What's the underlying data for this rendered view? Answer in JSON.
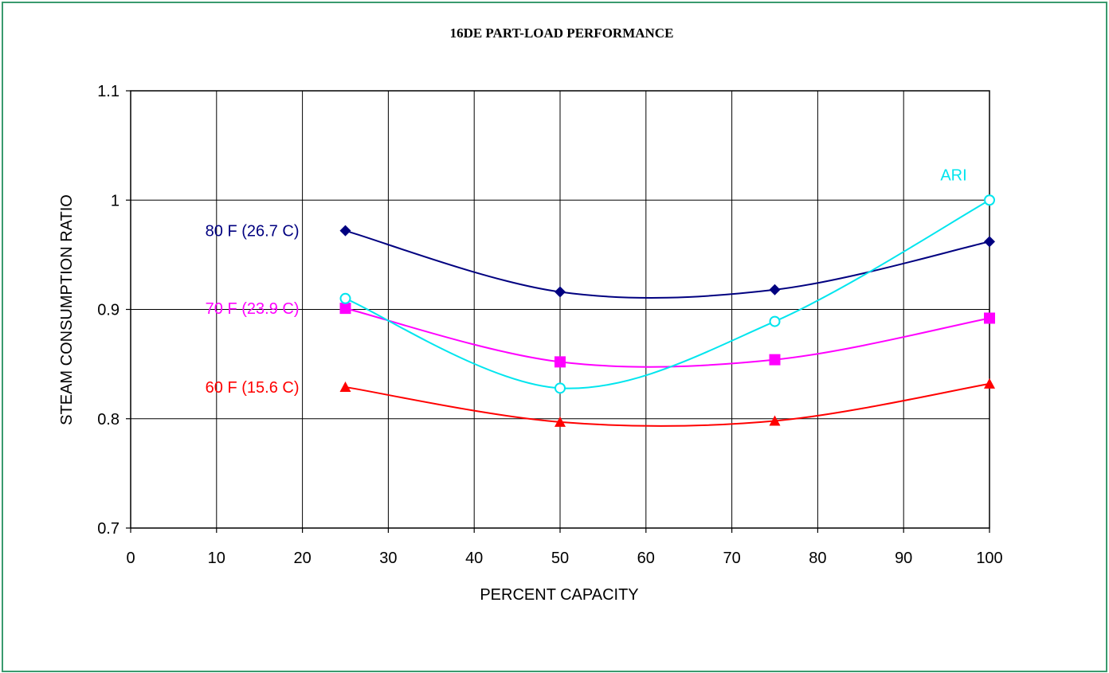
{
  "chart_data": {
    "type": "line",
    "title": "16DE PART-LOAD PERFORMANCE",
    "xlabel": "PERCENT CAPACITY",
    "ylabel": "STEAM CONSUMPTION RATIO",
    "xlim": [
      0,
      100
    ],
    "ylim": [
      0.7,
      1.1
    ],
    "x_ticks": [
      "0",
      "10",
      "20",
      "30",
      "40",
      "50",
      "60",
      "70",
      "80",
      "90",
      "100"
    ],
    "y_ticks": [
      "0.7",
      "0.8",
      "0.9",
      "1",
      "1.1"
    ],
    "grid": true,
    "x": [
      25,
      50,
      75,
      100
    ],
    "series": [
      {
        "name": "80 F (26.7 C)",
        "values": [
          0.972,
          0.916,
          0.918,
          0.962
        ],
        "color": "#000080",
        "marker": "diamond"
      },
      {
        "name": "70 F (23.9 C)",
        "values": [
          0.901,
          0.852,
          0.854,
          0.892
        ],
        "color": "#ff00ff",
        "marker": "square"
      },
      {
        "name": "60 F (15.6 C)",
        "values": [
          0.829,
          0.797,
          0.798,
          0.832
        ],
        "color": "#ff0000",
        "marker": "triangle"
      },
      {
        "name": "ARI",
        "values": [
          0.91,
          0.828,
          0.889,
          1.0
        ],
        "color": "#00e5ee",
        "marker": "circle-open"
      }
    ]
  },
  "colors": {
    "frame_border": "#3a9a6e",
    "grid": "#000000"
  }
}
